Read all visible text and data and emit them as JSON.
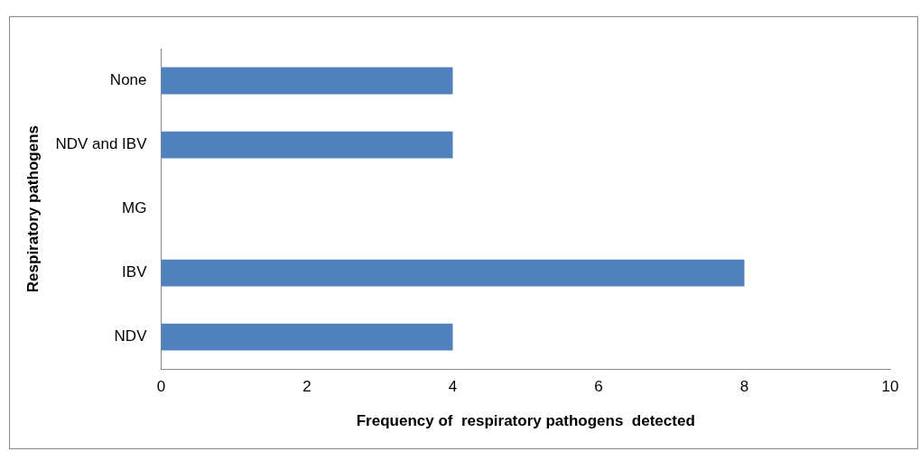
{
  "chart_data": {
    "type": "bar",
    "orientation": "horizontal",
    "categories": [
      "None",
      "NDV and IBV",
      "MG",
      "IBV",
      "NDV"
    ],
    "values": [
      4,
      4,
      0,
      8,
      4
    ],
    "color": "#4f81bd",
    "xlim": [
      0,
      10
    ],
    "xticks": [
      0,
      2,
      4,
      6,
      8,
      10
    ],
    "xlabel": "Frequency of  respiratory pathogens  detected",
    "ylabel": "Respiratory pathogens",
    "grid": false,
    "legend": false
  }
}
